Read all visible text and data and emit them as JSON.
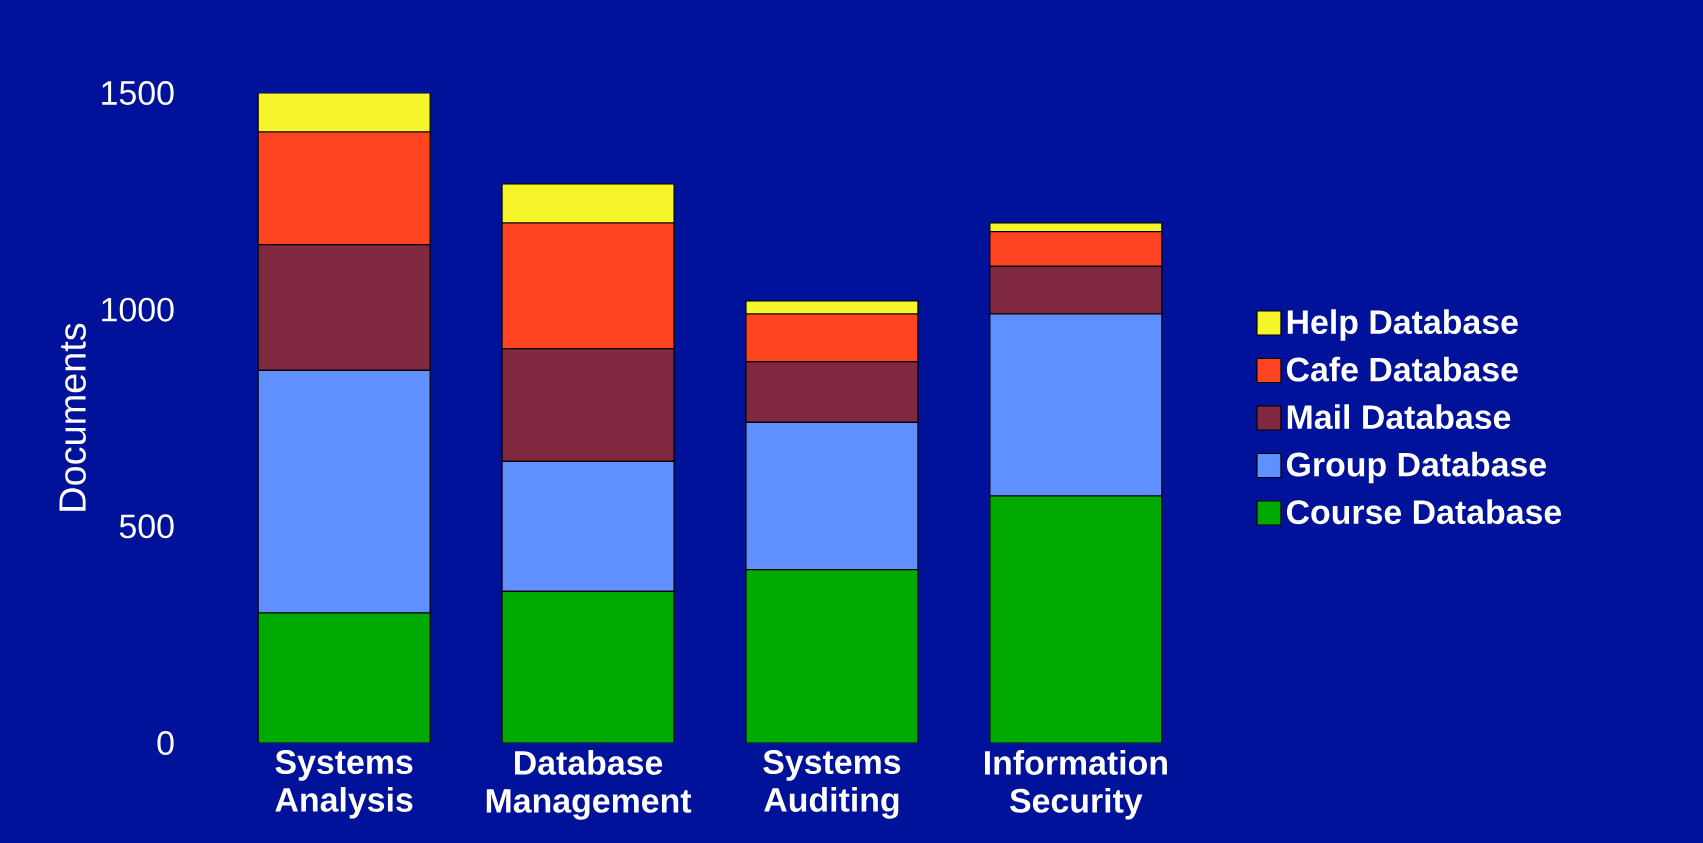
{
  "chart_data": {
    "type": "bar",
    "stacked": true,
    "ylabel": "Documents",
    "categories": [
      "Systems Analysis",
      "Database Management",
      "Systems Auditing",
      "Information Security"
    ],
    "series": [
      {
        "name": "Course Database",
        "color": "#00aa00",
        "values": [
          300,
          350,
          400,
          570
        ]
      },
      {
        "name": "Group Database",
        "color": "#6090ff",
        "values": [
          560,
          300,
          340,
          420
        ]
      },
      {
        "name": "Mail Database",
        "color": "#7f2840",
        "values": [
          290,
          260,
          140,
          110
        ]
      },
      {
        "name": "Cafe Database",
        "color": "#ff4422",
        "values": [
          260,
          290,
          110,
          80
        ]
      },
      {
        "name": "Help Database",
        "color": "#f5f52a",
        "values": [
          90,
          90,
          30,
          20
        ]
      }
    ],
    "ylim": [
      0,
      1500
    ],
    "yticks": [
      0,
      500,
      1000,
      1500
    ],
    "grid": false,
    "legend": "right"
  }
}
